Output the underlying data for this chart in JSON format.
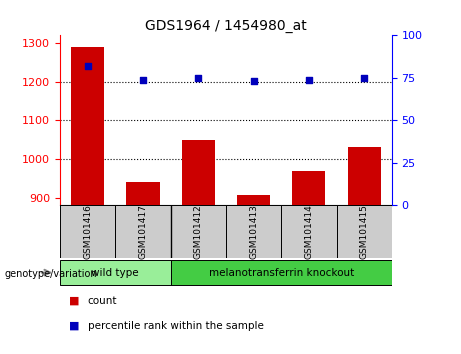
{
  "title": "GDS1964 / 1454980_at",
  "samples": [
    "GSM101416",
    "GSM101417",
    "GSM101412",
    "GSM101413",
    "GSM101414",
    "GSM101415"
  ],
  "counts": [
    1290,
    940,
    1048,
    908,
    970,
    1030
  ],
  "percentiles": [
    82,
    74,
    75,
    73,
    74,
    75
  ],
  "ylim_left": [
    880,
    1320
  ],
  "ylim_right": [
    0,
    100
  ],
  "yticks_left": [
    900,
    1000,
    1100,
    1200,
    1300
  ],
  "yticks_right": [
    0,
    25,
    50,
    75,
    100
  ],
  "bar_color": "#cc0000",
  "dot_color": "#0000bb",
  "grid_color": "#000000",
  "groups": [
    {
      "label": "wild type",
      "indices": [
        0,
        1
      ],
      "color": "#99ee99"
    },
    {
      "label": "melanotransferrin knockout",
      "indices": [
        2,
        3,
        4,
        5
      ],
      "color": "#44cc44"
    }
  ],
  "sample_box_color": "#cccccc",
  "genotype_label": "genotype/variation",
  "legend_count": "count",
  "legend_pct": "percentile rank within the sample",
  "bar_width": 0.6
}
